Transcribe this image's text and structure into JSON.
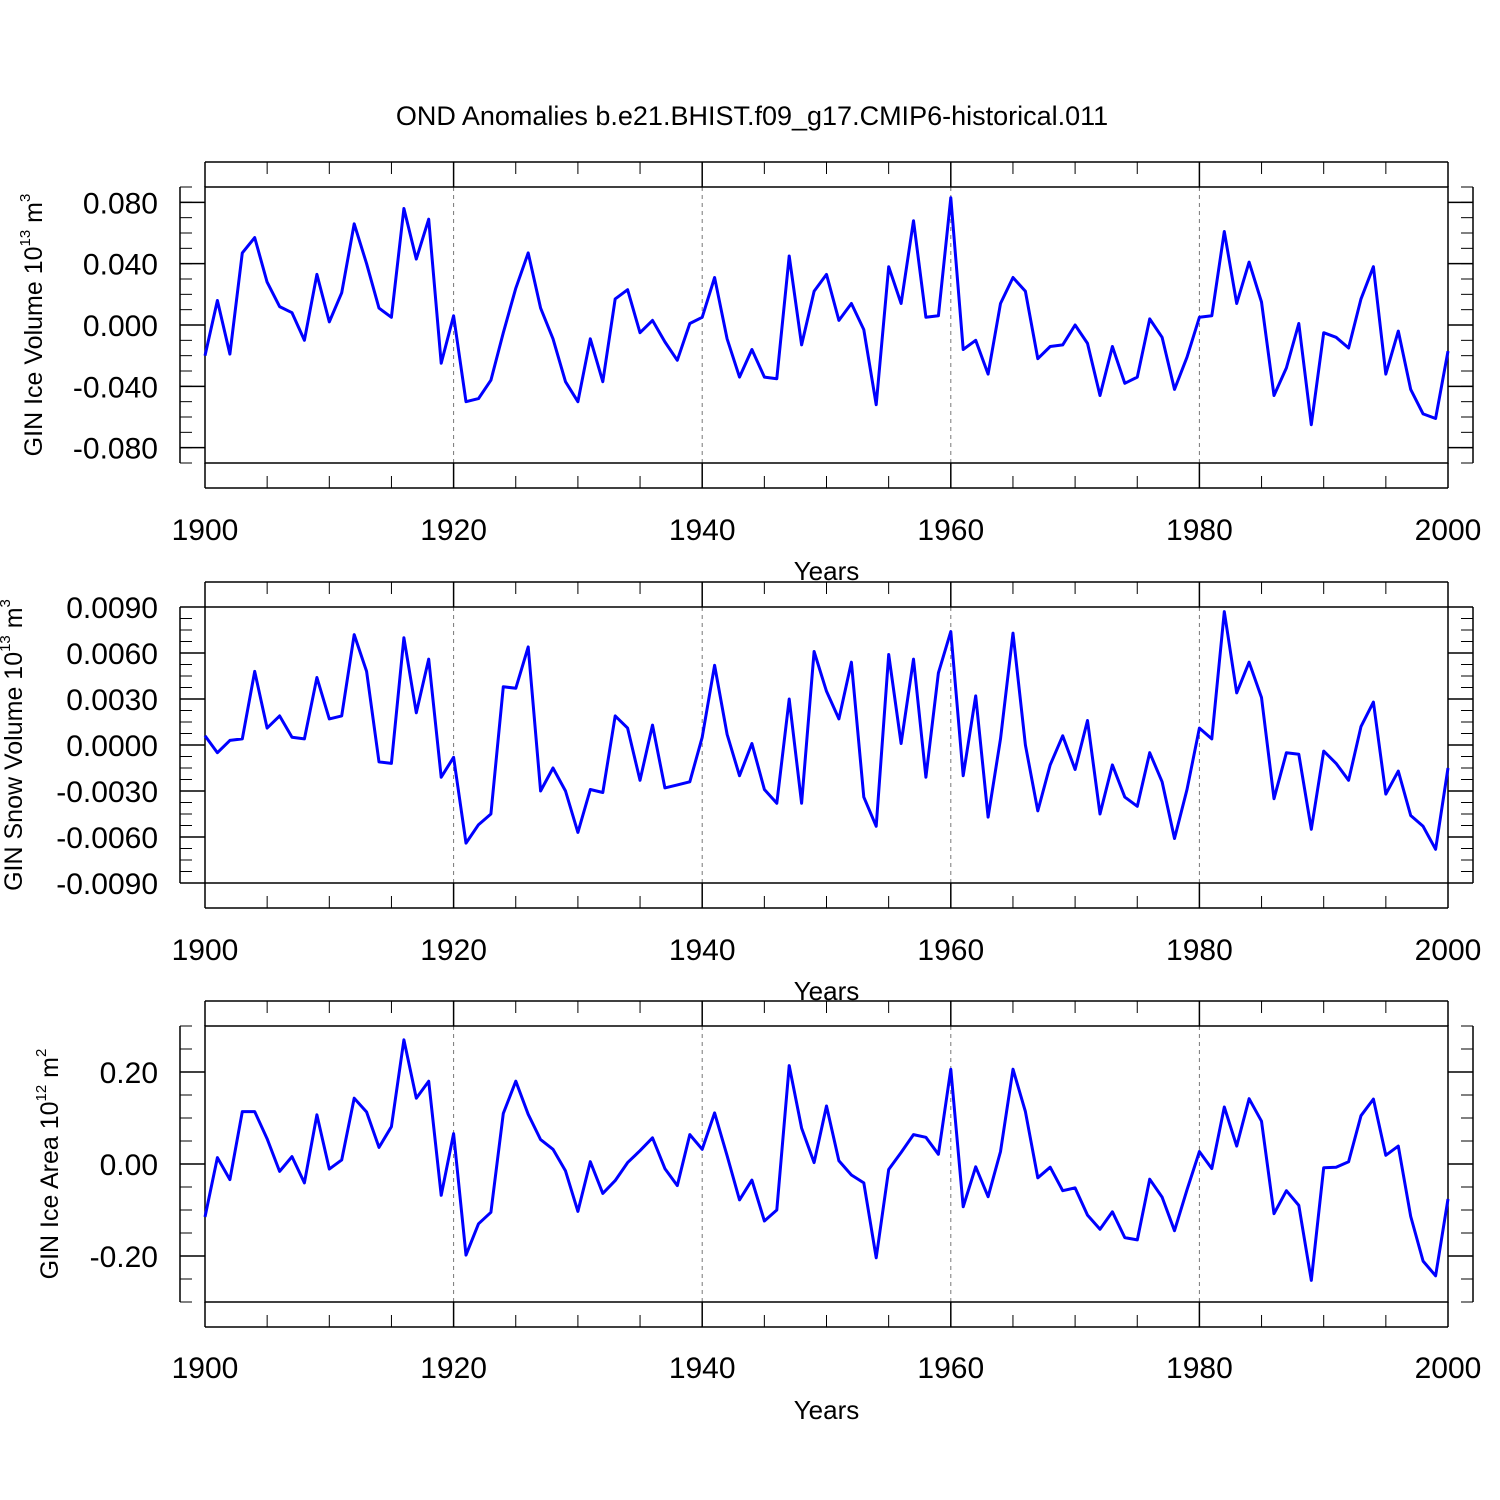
{
  "chart_data": {
    "title": "OND Anomalies b.e21.BHIST.f09_g17.CMIP6-historical.011",
    "type": "line",
    "color": "#0000ff",
    "x_start": 1900,
    "x_end": 2000,
    "panels": [
      {
        "name": "ice-volume",
        "ylabel_main": "GIN Ice Volume 10",
        "ylabel_exp": "13",
        "ylabel_unit": " m",
        "ylabel_unit_exp": "3",
        "xlabel": "Years",
        "xlim": [
          1900,
          2000
        ],
        "ylim": [
          -0.09,
          0.09
        ],
        "yticks": [
          -0.08,
          -0.04,
          0.0,
          0.04,
          0.08
        ],
        "ytick_labels": [
          "-0.080",
          "-0.040",
          "0.000",
          "0.040",
          "0.080"
        ],
        "xticks": [
          1900,
          1920,
          1940,
          1960,
          1980,
          2000
        ],
        "xtick_labels": [
          "1900",
          "1920",
          "1940",
          "1960",
          "1980",
          "2000"
        ],
        "values": [
          -0.02,
          0.016,
          -0.019,
          0.047,
          0.057,
          0.028,
          0.012,
          0.008,
          -0.01,
          0.033,
          0.002,
          0.021,
          0.066,
          0.04,
          0.011,
          0.005,
          0.076,
          0.043,
          0.069,
          -0.025,
          0.006,
          -0.05,
          -0.048,
          -0.036,
          -0.005,
          0.024,
          0.047,
          0.011,
          -0.009,
          -0.037,
          -0.05,
          -0.009,
          -0.037,
          0.017,
          0.023,
          -0.005,
          0.003,
          -0.011,
          -0.023,
          0.001,
          0.005,
          0.031,
          -0.009,
          -0.034,
          -0.016,
          -0.034,
          -0.035,
          0.045,
          -0.013,
          0.022,
          0.033,
          0.003,
          0.014,
          -0.003,
          -0.052,
          0.038,
          0.014,
          0.068,
          0.005,
          0.006,
          0.083,
          -0.016,
          -0.01,
          -0.032,
          0.014,
          0.031,
          0.022,
          -0.022,
          -0.014,
          -0.013,
          0.0,
          -0.012,
          -0.046,
          -0.014,
          -0.038,
          -0.034,
          0.004,
          -0.008,
          -0.042,
          -0.021,
          0.005,
          0.006,
          0.061,
          0.014,
          0.041,
          0.015,
          -0.046,
          -0.028,
          0.001,
          -0.065,
          -0.005,
          -0.008,
          -0.015,
          0.017,
          0.038,
          -0.032,
          -0.004,
          -0.042,
          -0.058,
          -0.061,
          -0.017
        ]
      },
      {
        "name": "snow-volume",
        "ylabel_main": "GIN Snow Volume 10",
        "ylabel_exp": "13",
        "ylabel_unit": " m",
        "ylabel_unit_exp": "3",
        "xlabel": "Years",
        "xlim": [
          1900,
          2000
        ],
        "ylim": [
          -0.009,
          0.009
        ],
        "yticks": [
          -0.009,
          -0.006,
          -0.003,
          0.0,
          0.003,
          0.006,
          0.009
        ],
        "ytick_labels": [
          "-0.0090",
          "-0.0060",
          "-0.0030",
          "0.0000",
          "0.0030",
          "0.0060",
          "0.0090"
        ],
        "xticks": [
          1900,
          1920,
          1940,
          1960,
          1980,
          2000
        ],
        "xtick_labels": [
          "1900",
          "1920",
          "1940",
          "1960",
          "1980",
          "2000"
        ],
        "values": [
          0.0006,
          -0.0005,
          0.0003,
          0.0004,
          0.0048,
          0.0011,
          0.0019,
          0.0005,
          0.0004,
          0.0044,
          0.0017,
          0.0019,
          0.0072,
          0.0048,
          -0.0011,
          -0.0012,
          0.007,
          0.0021,
          0.0056,
          -0.0021,
          -0.0008,
          -0.0064,
          -0.0052,
          -0.0045,
          0.0038,
          0.0037,
          0.0064,
          -0.003,
          -0.0015,
          -0.003,
          -0.0057,
          -0.0029,
          -0.0031,
          0.0019,
          0.0011,
          -0.0023,
          0.0013,
          -0.0028,
          -0.0026,
          -0.0024,
          0.0005,
          0.0052,
          0.0007,
          -0.002,
          0.0001,
          -0.0029,
          -0.0038,
          0.003,
          -0.0038,
          0.0061,
          0.0035,
          0.0017,
          0.0054,
          -0.0034,
          -0.0053,
          0.0059,
          0.0001,
          0.0056,
          -0.0021,
          0.0047,
          0.0074,
          -0.002,
          0.0032,
          -0.0047,
          0.0004,
          0.0073,
          0.0,
          -0.0043,
          -0.0013,
          0.0006,
          -0.0016,
          0.0016,
          -0.0045,
          -0.0013,
          -0.0034,
          -0.004,
          -0.0005,
          -0.0024,
          -0.0061,
          -0.0029,
          0.0011,
          0.0004,
          0.0087,
          0.0034,
          0.0054,
          0.0031,
          -0.0035,
          -0.0005,
          -0.0006,
          -0.0055,
          -0.0004,
          -0.0012,
          -0.0023,
          0.0012,
          0.0028,
          -0.0032,
          -0.0017,
          -0.0046,
          -0.0053,
          -0.0068,
          -0.0015
        ]
      },
      {
        "name": "ice-area",
        "ylabel_main": "GIN Ice Area 10",
        "ylabel_exp": "12",
        "ylabel_unit": " m",
        "ylabel_unit_exp": "2",
        "xlabel": "Years",
        "xlim": [
          1900,
          2000
        ],
        "ylim": [
          -0.3,
          0.3
        ],
        "yticks": [
          -0.2,
          0.0,
          0.2
        ],
        "ytick_labels": [
          "-0.20",
          "0.00",
          "0.20"
        ],
        "xticks": [
          1900,
          1920,
          1940,
          1960,
          1980,
          2000
        ],
        "xtick_labels": [
          "1900",
          "1920",
          "1940",
          "1960",
          "1980",
          "2000"
        ],
        "values": [
          -0.115,
          0.014,
          -0.034,
          0.114,
          0.114,
          0.055,
          -0.016,
          0.016,
          -0.041,
          0.107,
          -0.011,
          0.009,
          0.143,
          0.113,
          0.036,
          0.081,
          0.27,
          0.143,
          0.18,
          -0.068,
          0.066,
          -0.198,
          -0.13,
          -0.105,
          0.11,
          0.18,
          0.108,
          0.053,
          0.032,
          -0.015,
          -0.103,
          0.005,
          -0.064,
          -0.036,
          0.003,
          0.029,
          0.057,
          -0.01,
          -0.047,
          0.064,
          0.032,
          0.111,
          0.018,
          -0.078,
          -0.035,
          -0.124,
          -0.1,
          0.214,
          0.078,
          0.003,
          0.126,
          0.007,
          -0.024,
          -0.041,
          -0.204,
          -0.012,
          0.025,
          0.064,
          0.058,
          0.021,
          0.206,
          -0.093,
          -0.006,
          -0.071,
          0.027,
          0.206,
          0.114,
          -0.03,
          -0.007,
          -0.058,
          -0.052,
          -0.111,
          -0.142,
          -0.104,
          -0.16,
          -0.165,
          -0.033,
          -0.072,
          -0.145,
          -0.056,
          0.027,
          -0.01,
          0.124,
          0.039,
          0.142,
          0.093,
          -0.108,
          -0.058,
          -0.09,
          -0.253,
          -0.008,
          -0.007,
          0.005,
          0.105,
          0.141,
          0.019,
          0.039,
          -0.114,
          -0.211,
          -0.243,
          -0.076
        ]
      }
    ]
  }
}
